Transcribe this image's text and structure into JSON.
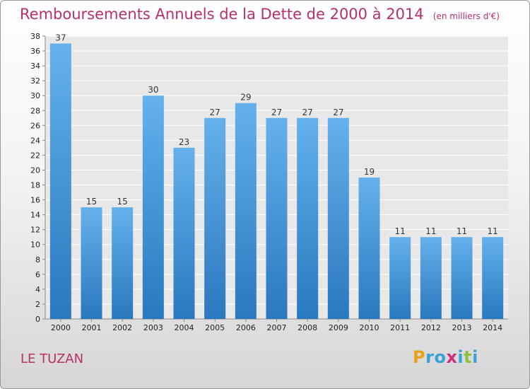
{
  "title": "Remboursements Annuels de la Dette de 2000 à 2014",
  "unit": "(en milliers d'€)",
  "commune": "LE TUZAN",
  "logo": {
    "letters": [
      "P",
      "r",
      "o",
      "x",
      "i",
      "t",
      "i"
    ],
    "colors": [
      "#e8a21a",
      "#3aa0d8",
      "#3aa0d8",
      "#d02d7a",
      "#3aa0d8",
      "#8ac23c",
      "#3aa0d8"
    ]
  },
  "colors": {
    "title": "#b8306a",
    "bar_top": "#64b1ec",
    "bar_bottom": "#2a78be",
    "grid": "#ffffff",
    "axis": "#888888"
  },
  "chart_data": {
    "type": "bar",
    "title": "Remboursements Annuels de la Dette de 2000 à 2014",
    "categories": [
      "2000",
      "2001",
      "2002",
      "2003",
      "2004",
      "2005",
      "2006",
      "2007",
      "2008",
      "2009",
      "2010",
      "2011",
      "2012",
      "2013",
      "2014"
    ],
    "values": [
      37,
      15,
      15,
      30,
      23,
      27,
      29,
      27,
      27,
      27,
      19,
      11,
      11,
      11,
      11
    ],
    "xlabel": "",
    "ylabel": "",
    "ylim": [
      0,
      38
    ],
    "yticks": [
      0,
      2,
      4,
      6,
      8,
      10,
      12,
      14,
      16,
      18,
      20,
      22,
      24,
      26,
      28,
      30,
      32,
      34,
      36,
      38
    ],
    "grid": true,
    "data_labels": true
  }
}
